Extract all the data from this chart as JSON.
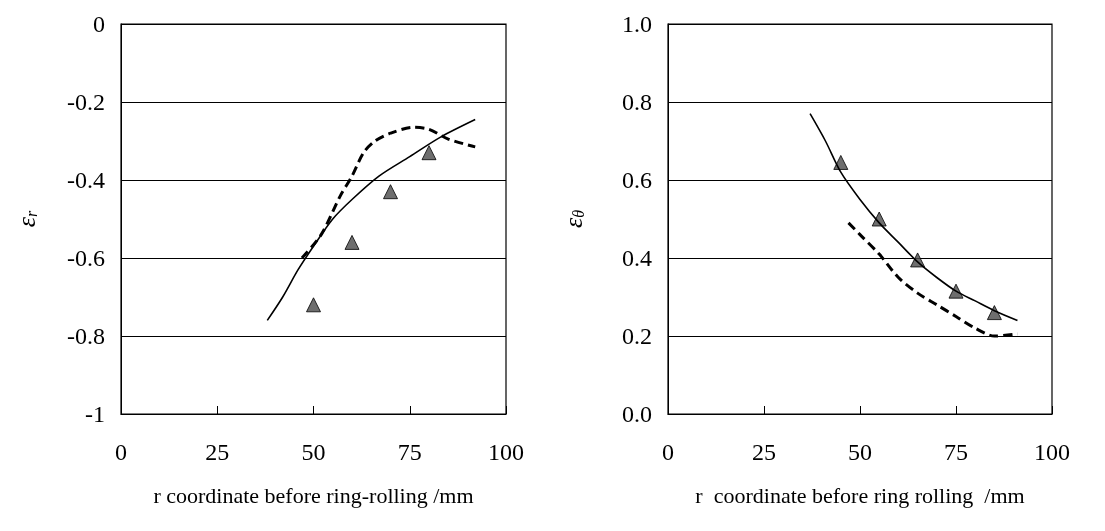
{
  "chart_data": [
    {
      "type": "line",
      "xlabel": "r coordinate before ring-rolling /mm",
      "ylabel": "ε$_{r}$",
      "xlim": [
        0,
        100
      ],
      "xticks": [
        0,
        25,
        50,
        75,
        100
      ],
      "ylim": [
        -1,
        0
      ],
      "yticks": [
        -1,
        -0.8,
        -0.6,
        -0.4,
        -0.2,
        0
      ],
      "grid": "y",
      "series": [
        {
          "color": "#000000",
          "marker": "none",
          "line_style": "solid",
          "x": [
            38,
            42,
            46,
            50,
            55,
            60,
            67,
            75,
            83,
            92
          ],
          "values": [
            -0.76,
            -0.7,
            -0.63,
            -0.57,
            -0.5,
            -0.45,
            -0.39,
            -0.34,
            -0.29,
            -0.245
          ]
        },
        {
          "color": "#000000",
          "marker": "none",
          "line_style": "dashed",
          "x": [
            47,
            52,
            57,
            60,
            63,
            66,
            70,
            76,
            80,
            85,
            92
          ],
          "values": [
            -0.6,
            -0.54,
            -0.44,
            -0.39,
            -0.33,
            -0.3,
            -0.28,
            -0.265,
            -0.27,
            -0.295,
            -0.315
          ]
        },
        {
          "type": "scatter",
          "color": "#4a4a4a",
          "marker": "triangle",
          "x": [
            50,
            60,
            70,
            80
          ],
          "values": [
            -0.72,
            -0.56,
            -0.43,
            -0.33
          ]
        }
      ]
    },
    {
      "type": "line",
      "xlabel": "r  coordinate before ring rolling  /mm",
      "ylabel": "ε$_{θ}$",
      "xlim": [
        0,
        100
      ],
      "xticks": [
        0,
        25,
        50,
        75,
        100
      ],
      "ylim": [
        0,
        1
      ],
      "yticks": [
        {
          "value": 0,
          "label": "0.0"
        },
        0.2,
        0.4,
        0.6,
        0.8,
        {
          "value": 1,
          "label": "1.0"
        }
      ],
      "grid": "y",
      "series": [
        {
          "color": "#000000",
          "marker": "none",
          "line_style": "solid",
          "x": [
            37,
            41,
            45,
            50,
            55,
            60,
            65,
            70,
            75,
            80,
            85,
            91
          ],
          "values": [
            0.77,
            0.7,
            0.62,
            0.55,
            0.49,
            0.44,
            0.39,
            0.35,
            0.315,
            0.29,
            0.265,
            0.24
          ]
        },
        {
          "color": "#000000",
          "marker": "none",
          "line_style": "dashed",
          "x": [
            47,
            50,
            55,
            60,
            65,
            70,
            75,
            80,
            85,
            91
          ],
          "values": [
            0.49,
            0.46,
            0.41,
            0.35,
            0.31,
            0.28,
            0.25,
            0.22,
            0.2,
            0.205
          ]
        },
        {
          "type": "scatter",
          "color": "#4a4a4a",
          "marker": "triangle",
          "x": [
            45,
            55,
            65,
            75,
            85
          ],
          "values": [
            0.645,
            0.5,
            0.395,
            0.315,
            0.26
          ]
        }
      ]
    }
  ]
}
